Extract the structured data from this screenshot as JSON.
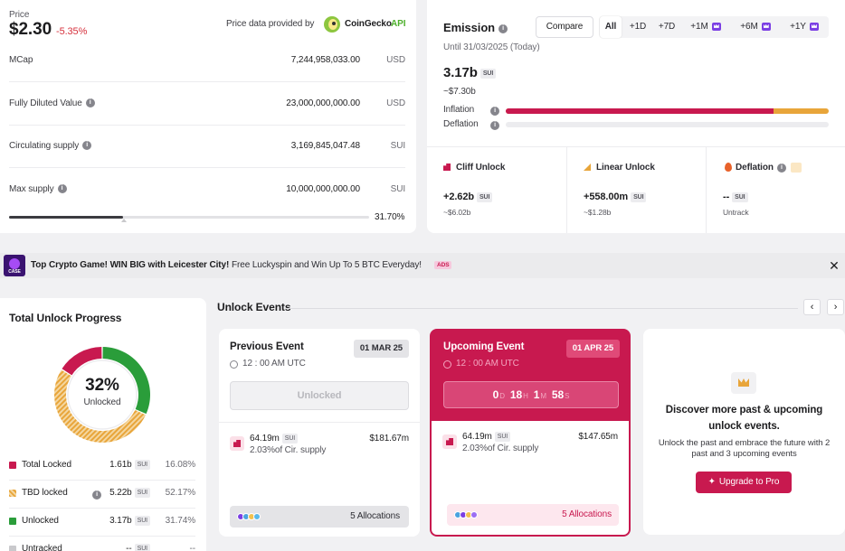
{
  "price": {
    "label": "Price",
    "value": "$2.30",
    "change": "-5.35%"
  },
  "provider": {
    "text": "Price data provided by",
    "brand": "CoinGecko",
    "api": "API"
  },
  "stats": [
    {
      "label": "MCap",
      "value": "7,244,958,033.00",
      "unit": "USD",
      "info": false
    },
    {
      "label": "Fully Diluted Value",
      "value": "23,000,000,000.00",
      "unit": "USD",
      "info": true
    },
    {
      "label": "Circulating supply",
      "value": "3,169,845,047.48",
      "unit": "SUI",
      "info": true
    },
    {
      "label": "Max supply",
      "value": "10,000,000,000.00",
      "unit": "SUI",
      "info": true
    }
  ],
  "supply_progress": {
    "percent_label": "31.70%",
    "fraction": 0.317
  },
  "emission": {
    "title": "Emission",
    "compare_label": "Compare",
    "timeframes": [
      "All",
      "+1D",
      "+7D",
      "+1M",
      "+6M",
      "+1Y"
    ],
    "active_timeframe": "All",
    "until": "Until 31/03/2025 (Today)",
    "amount": "3.17b",
    "unit": "SUI",
    "usd": "~$7.30b",
    "inflation_label": "Inflation",
    "deflation_label": "Deflation",
    "inflation_split": 0.83
  },
  "unlock_types": [
    {
      "title": "Cliff Unlock",
      "value": "+2.62b",
      "unit": "SUI",
      "usd": "~$6.02b",
      "color": "#c8194f"
    },
    {
      "title": "Linear Unlock",
      "value": "+558.00m",
      "unit": "SUI",
      "usd": "~$1.28b",
      "color": "#e8a53a"
    },
    {
      "title": "Deflation",
      "value": "--",
      "unit": "SUI",
      "usd": "Untrack",
      "color": "#e8622a"
    }
  ],
  "ad": {
    "title": "Top Crypto Game! WIN BIG with Leicester City!",
    "text": "Free Luckyspin and Win Up To 5 BTC Everyday!",
    "badge": "ADS",
    "icon_text": "CASE"
  },
  "progress": {
    "title": "Total Unlock Progress",
    "percent": "32%",
    "sub": "Unlocked",
    "legend": [
      {
        "name": "Total Locked",
        "value": "1.61b",
        "unit": "SUI",
        "pct": "16.08%",
        "color": "#c8194f",
        "info": false
      },
      {
        "name": "TBD locked",
        "value": "5.22b",
        "unit": "SUI",
        "pct": "52.17%",
        "color": "#e8a53a",
        "info": true
      },
      {
        "name": "Unlocked",
        "value": "3.17b",
        "unit": "SUI",
        "pct": "31.74%",
        "color": "#2a9d3a",
        "info": false
      },
      {
        "name": "Untracked",
        "value": "--",
        "unit": "SUI",
        "pct": "--",
        "color": "#c9c9cc",
        "info": false
      }
    ]
  },
  "events": {
    "title": "Unlock Events",
    "previous": {
      "title": "Previous Event",
      "date": "01 MAR 25",
      "time": "12 : 00 AM UTC",
      "button": "Unlocked",
      "amount": "64.19m",
      "unit": "SUI",
      "usd": "$181.67m",
      "supply": "2.03%of Cir. supply",
      "allocations": "5 Allocations"
    },
    "upcoming": {
      "title": "Upcoming Event",
      "date": "01 APR 25",
      "time": "12 : 00 AM UTC",
      "countdown": [
        {
          "n": "0",
          "u": "D"
        },
        {
          "n": "18",
          "u": "H"
        },
        {
          "n": "1",
          "u": "M"
        },
        {
          "n": "58",
          "u": "S"
        }
      ],
      "amount": "64.19m",
      "unit": "SUI",
      "usd": "$147.65m",
      "supply": "2.03%of Cir. supply",
      "allocations": "5 Allocations"
    },
    "promo": {
      "title": "Discover more past & upcoming unlock events.",
      "text": "Unlock the past and embrace the future with 2 past and 3 upcoming events",
      "button": "Upgrade to Pro"
    }
  },
  "colors": {
    "accent": "#c8194f",
    "gold": "#e8a53a",
    "green": "#2a9d3a",
    "purple": "#7b3fe4"
  }
}
